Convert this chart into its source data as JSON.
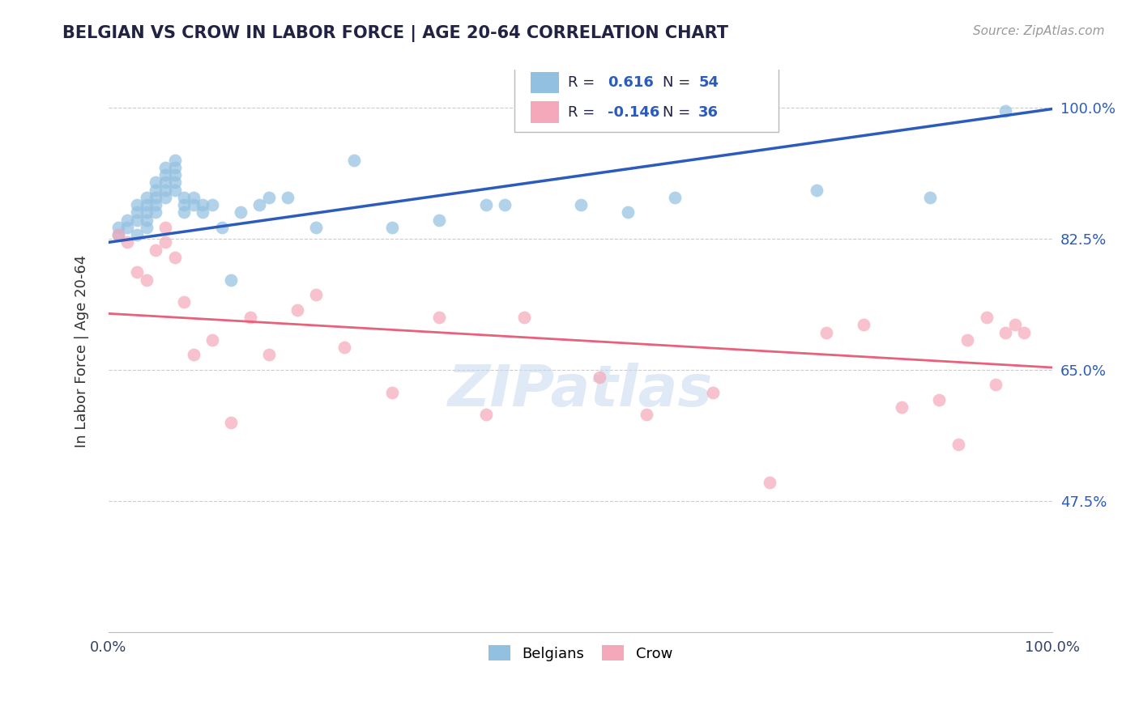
{
  "title": "BELGIAN VS CROW IN LABOR FORCE | AGE 20-64 CORRELATION CHART",
  "source": "Source: ZipAtlas.com",
  "ylabel": "In Labor Force | Age 20-64",
  "xlim": [
    0.0,
    1.0
  ],
  "ylim": [
    0.3,
    1.05
  ],
  "yticks": [
    0.475,
    0.65,
    0.825,
    1.0
  ],
  "ytick_labels": [
    "47.5%",
    "65.0%",
    "82.5%",
    "100.0%"
  ],
  "xtick_labels": [
    "0.0%",
    "100.0%"
  ],
  "xticks": [
    0.0,
    1.0
  ],
  "belgian_R": 0.616,
  "belgian_N": 54,
  "crow_R": -0.146,
  "crow_N": 36,
  "belgian_color": "#92C0E0",
  "crow_color": "#F4A8BA",
  "belgian_line_color": "#2B5BBD",
  "crow_line_color": "#E8607A",
  "background_color": "#FFFFFF",
  "grid_color": "#CCCCCC",
  "title_color": "#222244",
  "watermark": "ZIPatlas",
  "belgians_x": [
    0.01,
    0.01,
    0.02,
    0.02,
    0.03,
    0.03,
    0.03,
    0.03,
    0.04,
    0.04,
    0.04,
    0.04,
    0.04,
    0.05,
    0.05,
    0.05,
    0.05,
    0.05,
    0.06,
    0.06,
    0.06,
    0.06,
    0.06,
    0.07,
    0.07,
    0.07,
    0.07,
    0.07,
    0.08,
    0.08,
    0.08,
    0.09,
    0.09,
    0.1,
    0.1,
    0.11,
    0.12,
    0.13,
    0.14,
    0.16,
    0.17,
    0.19,
    0.22,
    0.26,
    0.3,
    0.35,
    0.4,
    0.42,
    0.5,
    0.55,
    0.6,
    0.75,
    0.87,
    0.95
  ],
  "belgians_y": [
    0.83,
    0.84,
    0.85,
    0.84,
    0.87,
    0.86,
    0.85,
    0.83,
    0.88,
    0.87,
    0.86,
    0.85,
    0.84,
    0.9,
    0.89,
    0.88,
    0.87,
    0.86,
    0.92,
    0.91,
    0.9,
    0.89,
    0.88,
    0.93,
    0.92,
    0.91,
    0.9,
    0.89,
    0.88,
    0.87,
    0.86,
    0.88,
    0.87,
    0.87,
    0.86,
    0.87,
    0.84,
    0.77,
    0.86,
    0.87,
    0.88,
    0.88,
    0.84,
    0.93,
    0.84,
    0.85,
    0.87,
    0.87,
    0.87,
    0.86,
    0.88,
    0.89,
    0.88,
    0.995
  ],
  "crow_x": [
    0.01,
    0.02,
    0.03,
    0.04,
    0.05,
    0.06,
    0.06,
    0.07,
    0.08,
    0.09,
    0.11,
    0.13,
    0.15,
    0.17,
    0.2,
    0.22,
    0.25,
    0.3,
    0.35,
    0.4,
    0.44,
    0.52,
    0.57,
    0.64,
    0.7,
    0.76,
    0.8,
    0.84,
    0.88,
    0.9,
    0.91,
    0.93,
    0.94,
    0.95,
    0.96,
    0.97
  ],
  "crow_y": [
    0.83,
    0.82,
    0.78,
    0.77,
    0.81,
    0.82,
    0.84,
    0.8,
    0.74,
    0.67,
    0.69,
    0.58,
    0.72,
    0.67,
    0.73,
    0.75,
    0.68,
    0.62,
    0.72,
    0.59,
    0.72,
    0.64,
    0.59,
    0.62,
    0.5,
    0.7,
    0.71,
    0.6,
    0.61,
    0.55,
    0.69,
    0.72,
    0.63,
    0.7,
    0.71,
    0.7
  ]
}
